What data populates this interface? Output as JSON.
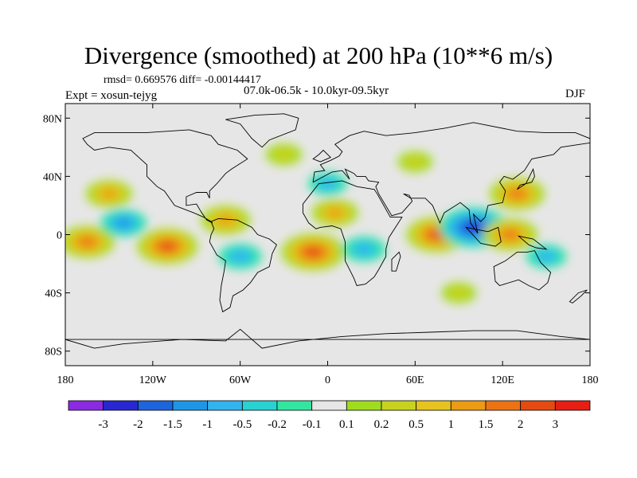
{
  "title": "Divergence (smoothed) at 200 hPa (10**6 m/s)",
  "stats": "rmsd= 0.669576 diff= -0.00144417",
  "experiment": "Expt = xosun-tejyg",
  "period": "07.0k-06.5k - 10.0kyr-09.5kyr",
  "season": "DJF",
  "y_ticks": [
    {
      "label": "80N",
      "lat": 80
    },
    {
      "label": "40N",
      "lat": 40
    },
    {
      "label": "0",
      "lat": 0
    },
    {
      "label": "40S",
      "lat": -40
    },
    {
      "label": "80S",
      "lat": -80
    }
  ],
  "x_ticks": [
    {
      "label": "180",
      "lon": -180
    },
    {
      "label": "120W",
      "lon": -120
    },
    {
      "label": "60W",
      "lon": -60
    },
    {
      "label": "0",
      "lon": 0
    },
    {
      "label": "60E",
      "lon": 60
    },
    {
      "label": "120E",
      "lon": 120
    },
    {
      "label": "180",
      "lon": 180
    }
  ],
  "colorbar": {
    "colors": [
      "#8a2be2",
      "#2828d2",
      "#1e64dc",
      "#1e96e6",
      "#32b4f0",
      "#28d2d2",
      "#32e6a0",
      "#e6e6e6",
      "#a0dc1e",
      "#c8d21e",
      "#e6c31e",
      "#eb9b14",
      "#ec7314",
      "#e44a12",
      "#e61e14"
    ],
    "labels": [
      "-3",
      "-2",
      "-1.5",
      "-1",
      "-0.5",
      "-0.2",
      "-0.1",
      "0.1",
      "0.2",
      "0.5",
      "1",
      "1.5",
      "2",
      "3"
    ]
  },
  "map": {
    "region": "global",
    "lon_range": [
      -180,
      180
    ],
    "lat_range": [
      -90,
      90
    ],
    "background_color": "#e6e6e6",
    "anomalies": [
      {
        "lon": -165,
        "lat": -5,
        "value": 1.6
      },
      {
        "lon": -110,
        "lat": -8,
        "value": 2.0
      },
      {
        "lon": -70,
        "lat": 10,
        "value": 1.2
      },
      {
        "lon": -10,
        "lat": -12,
        "value": 2.2
      },
      {
        "lon": 5,
        "lat": 15,
        "value": 1.0
      },
      {
        "lon": 75,
        "lat": 0,
        "value": 2.0
      },
      {
        "lon": 100,
        "lat": 5,
        "value": -2.6
      },
      {
        "lon": 125,
        "lat": 0,
        "value": 1.6
      },
      {
        "lon": 130,
        "lat": 28,
        "value": 1.6
      },
      {
        "lon": -150,
        "lat": 28,
        "value": 1.0
      },
      {
        "lon": -140,
        "lat": 8,
        "value": -1.0
      },
      {
        "lon": -60,
        "lat": -15,
        "value": -0.8
      },
      {
        "lon": 25,
        "lat": -10,
        "value": -0.8
      },
      {
        "lon": 0,
        "lat": 35,
        "value": -0.5
      },
      {
        "lon": 150,
        "lat": -15,
        "value": -0.6
      },
      {
        "lon": -30,
        "lat": 55,
        "value": 0.3
      },
      {
        "lon": 60,
        "lat": 50,
        "value": 0.2
      },
      {
        "lon": 90,
        "lat": -40,
        "value": 0.2
      }
    ]
  }
}
